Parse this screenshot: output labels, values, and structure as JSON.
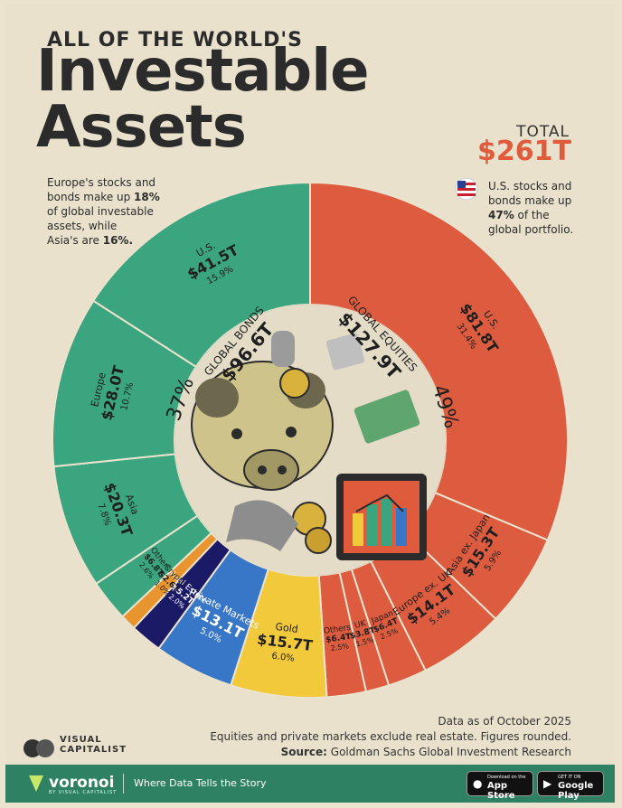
{
  "header": {
    "kicker": "ALL OF THE WORLD'S",
    "title_line1": "Investable",
    "title_line2": "Assets",
    "total_label": "TOTAL",
    "total_value": "$261T"
  },
  "notes": {
    "europe_asia_1": "Europe's stocks and",
    "europe_asia_2": "bonds make up ",
    "europe_asia_pct": "18%",
    "europe_asia_3": "of global investable",
    "europe_asia_4": "assets, while",
    "europe_asia_5": "Asia's are ",
    "europe_asia_pct2": "16%.",
    "us_1": "U.S. stocks and",
    "us_2": "bonds make up",
    "us_pct": "47%",
    "us_3": " of the",
    "us_4": "global portfolio."
  },
  "chart_data": {
    "type": "pie",
    "unit": "$T",
    "total": 261,
    "inner": [
      {
        "name": "GLOBAL BONDS",
        "value": 96.6,
        "label": "$96.6T",
        "pct": "37%"
      },
      {
        "name": "GLOBAL EQUITIES",
        "value": 127.9,
        "label": "$127.9T",
        "pct": "49%"
      }
    ],
    "slices": [
      {
        "name": "U.S.",
        "group": "bonds",
        "value": 41.5,
        "label": "$41.5T",
        "pct": "15.9%",
        "color": "#3aa57f"
      },
      {
        "name": "Europe",
        "group": "bonds",
        "value": 28.0,
        "label": "$28.0T",
        "pct": "10.7%",
        "color": "#3aa57f"
      },
      {
        "name": "Asia",
        "group": "bonds",
        "value": 20.3,
        "label": "$20.3T",
        "pct": "7.8%",
        "color": "#3aa57f"
      },
      {
        "name": "Others",
        "group": "bonds",
        "value": 6.8,
        "label": "$6.8T",
        "pct": "2.6%",
        "color": "#3aa57f"
      },
      {
        "name": "Crypto",
        "group": "other",
        "value": 2.6,
        "label": "$2.6T",
        "pct": "1.0%",
        "color": "#e8952f"
      },
      {
        "name": "Real Estate",
        "group": "other",
        "value": 5.2,
        "label": "$5.2T",
        "pct": "2.0%",
        "color": "#1b1a66"
      },
      {
        "name": "Private Markets",
        "group": "other",
        "value": 13.1,
        "label": "$13.1T",
        "pct": "5.0%",
        "color": "#3877c7"
      },
      {
        "name": "Gold",
        "group": "other",
        "value": 15.7,
        "label": "$15.7T",
        "pct": "6.0%",
        "color": "#f2c93a"
      },
      {
        "name": "Others",
        "group": "equities",
        "value": 6.4,
        "label": "$6.4T",
        "pct": "2.5%",
        "color": "#dd5b3e"
      },
      {
        "name": "UK",
        "group": "equities",
        "value": 3.8,
        "label": "$3.8T",
        "pct": "1.5%",
        "color": "#dd5b3e"
      },
      {
        "name": "Japan",
        "group": "equities",
        "value": 6.4,
        "label": "$6.4T",
        "pct": "2.5%",
        "color": "#dd5b3e"
      },
      {
        "name": "Europe ex. UK",
        "group": "equities",
        "value": 14.1,
        "label": "$14.1T",
        "pct": "5.4%",
        "color": "#dd5b3e"
      },
      {
        "name": "Asia ex. Japan",
        "group": "equities",
        "value": 15.3,
        "label": "$15.3T",
        "pct": "5.9%",
        "color": "#dd5b3e"
      },
      {
        "name": "U.S.",
        "group": "equities",
        "value": 81.8,
        "label": "$81.8T",
        "pct": "31.4%",
        "color": "#dd5b3e"
      }
    ]
  },
  "footer": {
    "date": "Data as of October 2025",
    "method": "Equities and private markets exclude real estate. Figures rounded.",
    "source_label": "Source:",
    "source": " Goldman Sachs Global Investment Research",
    "brand_1": "VISUAL",
    "brand_2": "CAPITALIST"
  },
  "bottom_bar": {
    "logo": "voronoi",
    "logo_sub": "BY VISUAL CAPITALIST",
    "tagline": "Where Data Tells the Story",
    "app_store_top": "Download on the",
    "app_store": "App Store",
    "play_top": "GET IT ON",
    "play": "Google Play"
  }
}
